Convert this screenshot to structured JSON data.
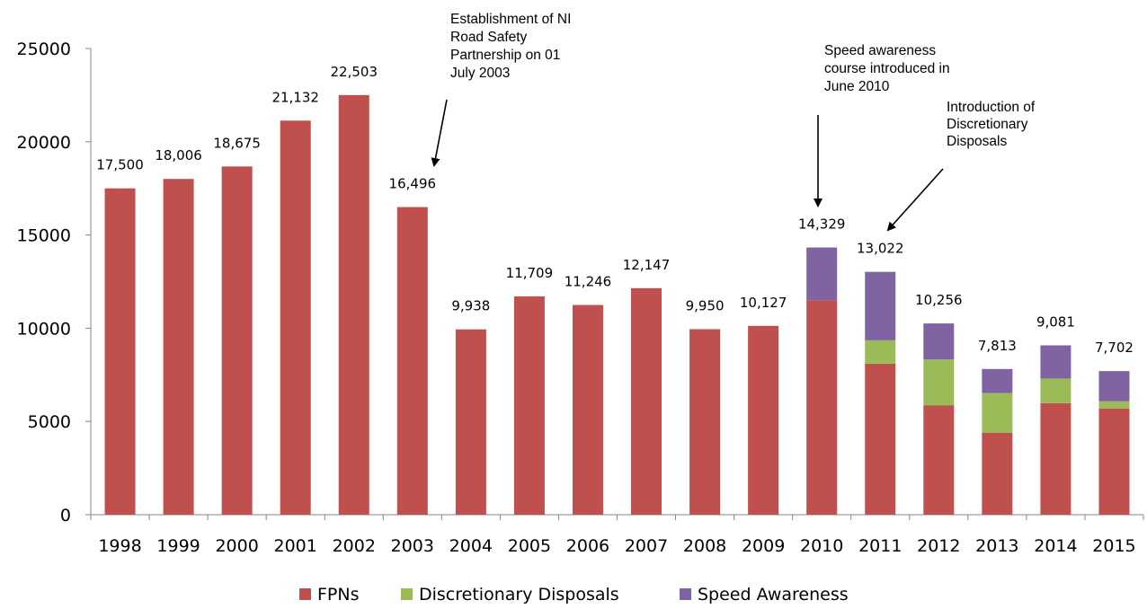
{
  "chart_data": {
    "type": "bar",
    "stacked": true,
    "categories": [
      "1998",
      "1999",
      "2000",
      "2001",
      "2002",
      "2003",
      "2004",
      "2005",
      "2006",
      "2007",
      "2008",
      "2009",
      "2010",
      "2011",
      "2012",
      "2013",
      "2014",
      "2015"
    ],
    "series": [
      {
        "name": "FPNs",
        "color": "#c0504d",
        "values": [
          17500,
          18006,
          18675,
          21132,
          22503,
          16496,
          9938,
          11709,
          11246,
          12147,
          9950,
          10127,
          11500,
          8100,
          5870,
          4400,
          5980,
          5700
        ]
      },
      {
        "name": "Discretionary Disposals",
        "color": "#9bbb59",
        "values": [
          0,
          0,
          0,
          0,
          0,
          0,
          0,
          0,
          0,
          0,
          0,
          0,
          0,
          1250,
          2450,
          2120,
          1320,
          380
        ]
      },
      {
        "name": "Speed Awareness",
        "color": "#8064a2",
        "values": [
          0,
          0,
          0,
          0,
          0,
          0,
          0,
          0,
          0,
          0,
          0,
          0,
          2829,
          3672,
          1936,
          1293,
          1781,
          1622
        ]
      }
    ],
    "totals": [
      "17,500",
      "18,006",
      "18,675",
      "21,132",
      "22,503",
      "16,496",
      "9,938",
      "11,709",
      "11,246",
      "12,147",
      "9,950",
      "10,127",
      "14,329",
      "13,022",
      "10,256",
      "7,813",
      "9,081",
      "7,702"
    ],
    "ylim": [
      0,
      25000
    ],
    "yticks": [
      "0",
      "5000",
      "10000",
      "15000",
      "20000",
      "25000"
    ],
    "legend_position": "bottom",
    "grid": false,
    "annotations": [
      {
        "category": "2003",
        "lines": [
          "Establishment of NI",
          "Road Safety",
          "Partnership on 01",
          "July 2003"
        ]
      },
      {
        "category": "2010",
        "lines": [
          "Speed awareness",
          "course introduced in",
          "June 2010"
        ]
      },
      {
        "category": "2011",
        "lines": [
          "Introduction of",
          "Discretionary",
          "Disposals"
        ]
      }
    ]
  }
}
